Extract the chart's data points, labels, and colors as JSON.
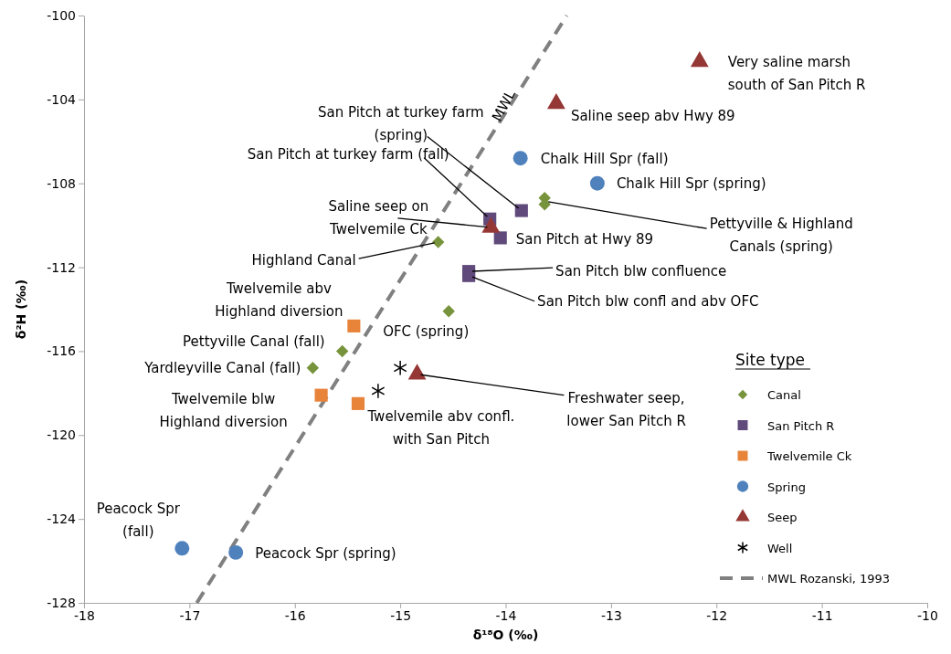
{
  "chart_data": {
    "type": "scatter",
    "xlabel": "δ¹⁸O (‰)",
    "ylabel": "δ²H (‰)",
    "legend_title": "Site type",
    "legend": "bottom right",
    "grid": false,
    "xlim": [
      -18,
      -10
    ],
    "xticks": [
      -18,
      -17,
      -16,
      -15,
      -14,
      -13,
      -12,
      -11,
      -10
    ],
    "ylim": [
      -128,
      -100
    ],
    "yticks": [
      -128,
      -124,
      -120,
      -116,
      -112,
      -108,
      -104,
      -100
    ],
    "series": [
      {
        "name": "Canal",
        "color": "#77933c",
        "marker": "diamond",
        "x": [
          -13.63,
          -13.63,
          -14.64,
          -14.54,
          -15.55,
          -15.83
        ],
        "values": [
          -108.7,
          -109.0,
          -110.8,
          -114.1,
          -116.0,
          -116.8
        ]
      },
      {
        "name": "San Pitch R",
        "color": "#604a7b",
        "marker": "square",
        "x": [
          -14.15,
          -13.85,
          -14.05,
          -14.35,
          -14.35
        ],
        "values": [
          -109.7,
          -109.3,
          -110.6,
          -112.2,
          -112.4
        ]
      },
      {
        "name": "Twelvemile Ck",
        "color": "#e8833a",
        "marker": "square",
        "x": [
          -15.44,
          -15.75,
          -15.4
        ],
        "values": [
          -114.8,
          -118.1,
          -118.5
        ]
      },
      {
        "name": "Spring",
        "color": "#4f81bd",
        "marker": "circle",
        "x": [
          -13.86,
          -13.13,
          -17.07,
          -16.56
        ],
        "values": [
          -106.8,
          -108.0,
          -125.4,
          -125.6
        ]
      },
      {
        "name": "Seep",
        "color": "#953735",
        "marker": "triangle",
        "x": [
          -12.16,
          -13.52,
          -14.14,
          -14.84
        ],
        "values": [
          -102.2,
          -104.2,
          -110.1,
          -117.1
        ]
      },
      {
        "name": "Well",
        "color": "#000000",
        "marker": "cross",
        "x": [
          -15.0,
          -15.21
        ],
        "values": [
          -116.8,
          -117.9
        ]
      },
      {
        "name": "MWL Rozanski, 1993",
        "type": "line",
        "color": "#808080",
        "line_style": "dashed",
        "x": [
          -16.93,
          -13.42
        ],
        "values": [
          -128,
          -100
        ]
      }
    ],
    "annotations": [
      {
        "text": "Very saline marsh\nsouth of San Pitch R",
        "x": -12.16,
        "y": -102.2
      },
      {
        "text": "Saline seep abv Hwy 89",
        "x": -13.52,
        "y": -104.2
      },
      {
        "text": "Chalk Hill Spr (fall)",
        "x": -13.86,
        "y": -106.8
      },
      {
        "text": "Chalk Hill Spr (spring)",
        "x": -13.13,
        "y": -108.0
      },
      {
        "text": "Pettyville & Highland\nCanals (spring)",
        "x": -13.63,
        "y": -108.85
      },
      {
        "text": "San Pitch at Hwy 89",
        "x": -14.05,
        "y": -110.6
      },
      {
        "text": "San Pitch blw confluence",
        "x": -14.35,
        "y": -112.2
      },
      {
        "text": "San Pitch blw confl and abv OFC",
        "x": -14.35,
        "y": -112.4
      },
      {
        "text": "OFC (spring)",
        "x": -14.54,
        "y": -114.1
      },
      {
        "text": "Freshwater seep,\nlower San Pitch R",
        "x": -14.84,
        "y": -117.1
      },
      {
        "text": "Twelvemile abv confl.\nwith San Pitch",
        "x": -15.21,
        "y": -117.9
      },
      {
        "text": "Twelvemile blw\nHighland diversion",
        "x": -15.75,
        "y": -118.1
      },
      {
        "text": "Yardleyville Canal (fall)",
        "x": -15.83,
        "y": -116.8
      },
      {
        "text": "Pettyville Canal (fall)",
        "x": -15.55,
        "y": -116.0
      },
      {
        "text": "Twelvemile abv\nHighland diversion",
        "x": -15.44,
        "y": -114.8
      },
      {
        "text": "Highland Canal",
        "x": -14.64,
        "y": -110.8
      },
      {
        "text": "Saline seep on\nTwelvemile Ck",
        "x": -14.14,
        "y": -110.1
      },
      {
        "text": "San Pitch at turkey farm (fall)",
        "x": -14.15,
        "y": -109.7
      },
      {
        "text": "San Pitch at turkey farm\n(spring)",
        "x": -13.85,
        "y": -109.3
      },
      {
        "text": "Peacock Spr\n(fall)",
        "x": -17.07,
        "y": -125.4
      },
      {
        "text": "Peacock Spr (spring)",
        "x": -16.56,
        "y": -125.6
      },
      {
        "text": "MWL",
        "x": -13.98,
        "y": -104.4
      }
    ]
  }
}
